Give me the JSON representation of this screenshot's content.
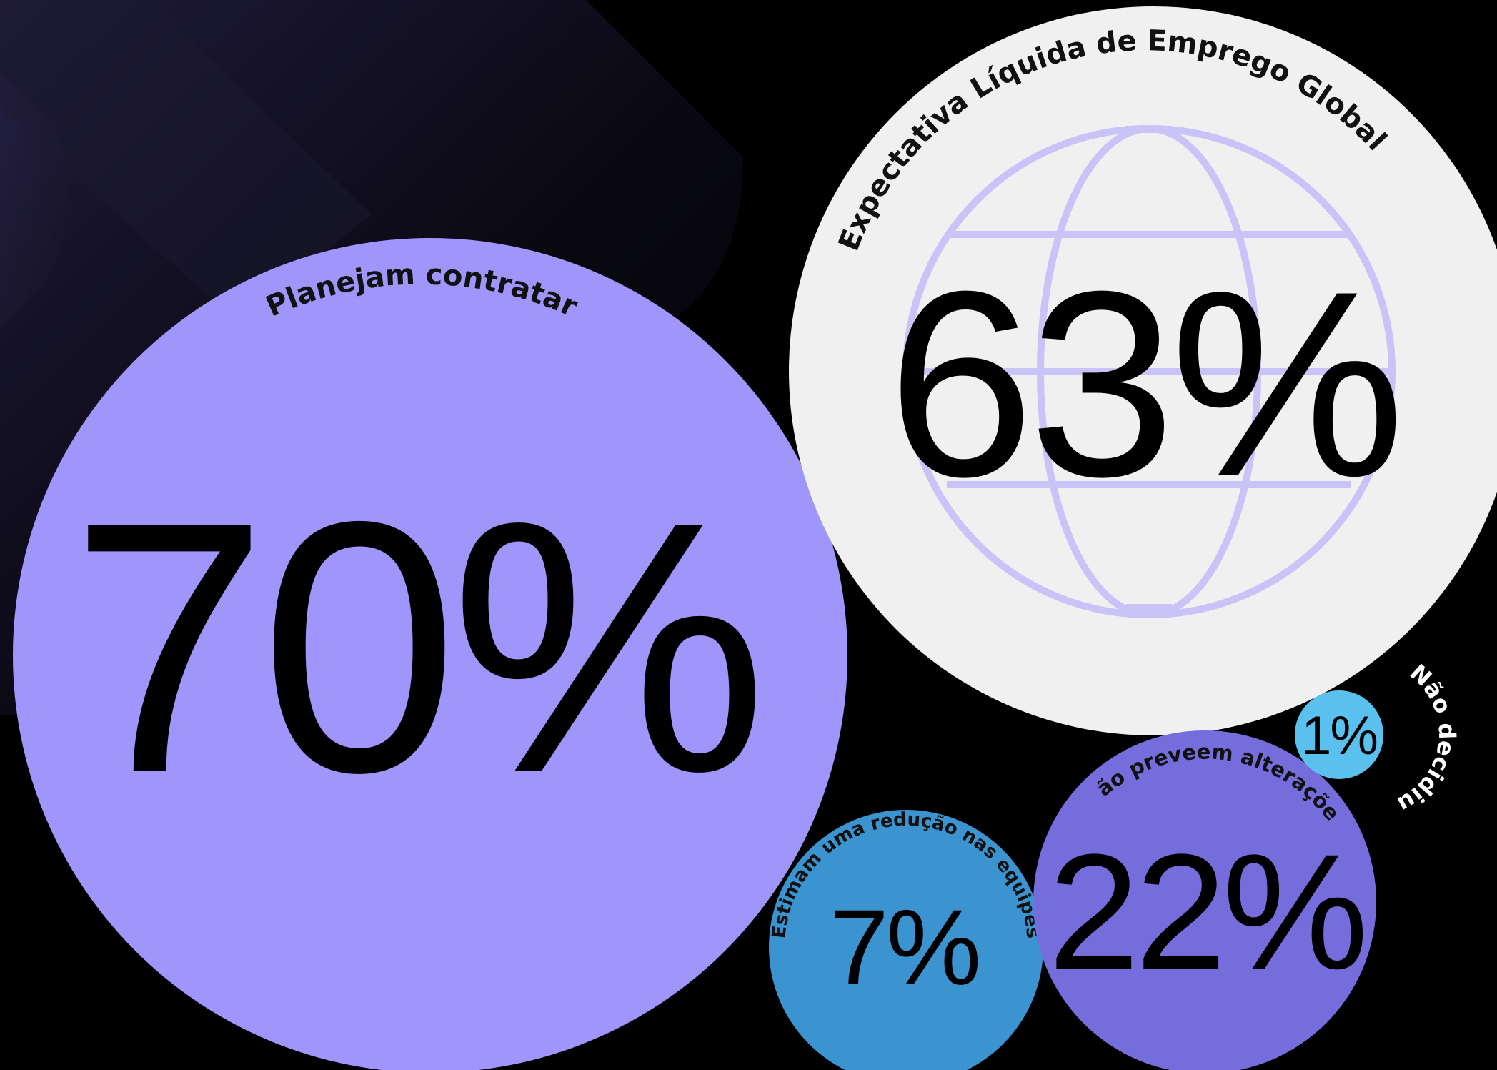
{
  "colors": {
    "background": "#000000",
    "shape_dark": "#1a1830",
    "plan_hire": "#9f95fa",
    "global_circle": "#f0f0f0",
    "globe_icon": "#c9c3f8",
    "reduce": "#3b93cf",
    "no_change": "#766ddc",
    "undecided": "#5ac1ef"
  },
  "chart_data": {
    "type": "bubble",
    "title": "",
    "series": [
      {
        "id": "plan-hire",
        "label": "Planejam contratar",
        "value": 70,
        "display": "70%"
      },
      {
        "id": "no-change",
        "label": "Não preveem alterações",
        "value": 22,
        "display": "22%"
      },
      {
        "id": "reduce",
        "label": "Estimam uma redução nas equipes",
        "value": 7,
        "display": "7%"
      },
      {
        "id": "undecided",
        "label": "Não decidiu",
        "value": 1,
        "display": "1%"
      }
    ],
    "headline": {
      "label": "Expectativa Líquida de Emprego Global",
      "value": 63,
      "display": "63%",
      "icon": "globe-icon"
    }
  }
}
